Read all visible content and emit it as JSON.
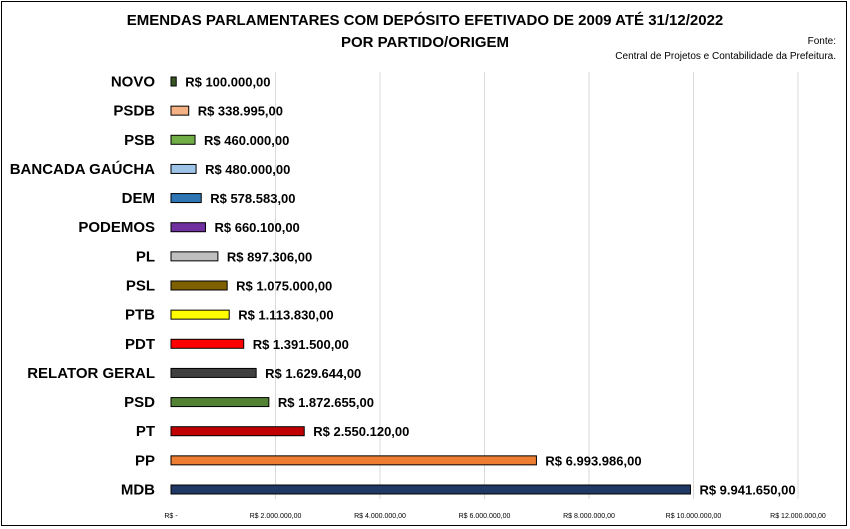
{
  "chart_data": {
    "type": "bar",
    "orientation": "horizontal",
    "title": "EMENDAS PARLAMENTARES COM DEPÓSITO EFETIVADO DE 2009 ATÉ 31/12/2022",
    "subtitle": "POR PARTIDO/ORIGEM",
    "source_label": "Fonte:",
    "source_text": "Central de Projetos e Contabilidade da Prefeitura.",
    "categories": [
      "NOVO",
      "PSDB",
      "PSB",
      "BANCADA GAÚCHA",
      "DEM",
      "PODEMOS",
      "PL",
      "PSL",
      "PTB",
      "PDT",
      "RELATOR GERAL",
      "PSD",
      "PT",
      "PP",
      "MDB"
    ],
    "values": [
      100000,
      338995,
      460000,
      480000,
      578583,
      660100,
      897306,
      1075000,
      1113830,
      1391500,
      1629644,
      1872655,
      2550120,
      6993986,
      9941650
    ],
    "value_labels": [
      "R$ 100.000,00",
      "R$ 338.995,00",
      "R$ 460.000,00",
      "R$ 480.000,00",
      "R$ 578.583,00",
      "R$ 660.100,00",
      "R$ 897.306,00",
      "R$ 1.075.000,00",
      "R$ 1.113.830,00",
      "R$ 1.391.500,00",
      "R$ 1.629.644,00",
      "R$ 1.872.655,00",
      "R$ 2.550.120,00",
      "R$ 6.993.986,00",
      "R$ 9.941.650,00"
    ],
    "colors": [
      "#375623",
      "#F4B183",
      "#70AD47",
      "#9DC3E6",
      "#2E75B6",
      "#7030A0",
      "#BFBFBF",
      "#7F6000",
      "#FFFF00",
      "#FF0000",
      "#404040",
      "#548235",
      "#C00000",
      "#ED7D31",
      "#1F3864"
    ],
    "xlim": [
      0,
      12000000
    ],
    "x_ticks": [
      0,
      2000000,
      4000000,
      6000000,
      8000000,
      10000000,
      12000000
    ],
    "x_tick_labels": [
      "R$ -",
      "R$ 2.000.000,00",
      "R$ 4.000.000,00",
      "R$ 6.000.000,00",
      "R$ 8.000.000,00",
      "R$ 10.000.000,00",
      "R$ 12.000.000,00"
    ],
    "grid": true,
    "legend": "none"
  }
}
